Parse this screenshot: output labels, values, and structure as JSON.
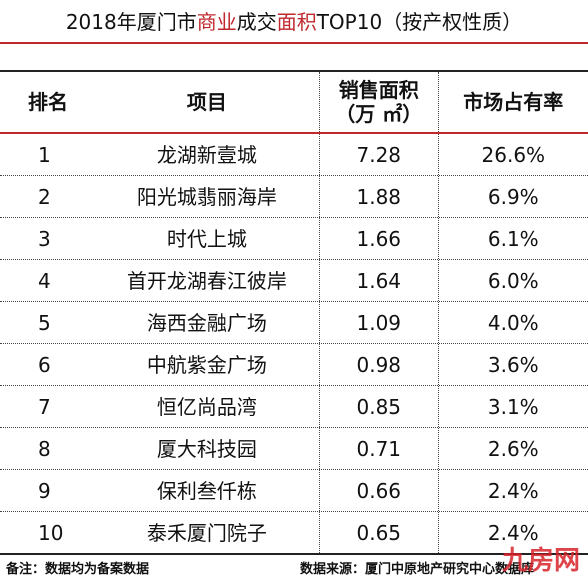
{
  "title": {
    "parts": [
      "2018年厦门市",
      "商业",
      "成交",
      "面积",
      "TOP10（按产权性质）"
    ]
  },
  "table": {
    "header": [
      "排名",
      "项目",
      [
        "销售面积",
        "（万 ㎡）"
      ],
      "市场占有率"
    ],
    "rows": [
      [
        "1",
        "龙湖新壹城",
        "7.28",
        "26.6%"
      ],
      [
        "2",
        "阳光城翡丽海岸",
        "1.88",
        "6.9%"
      ],
      [
        "3",
        "时代上城",
        "1.66",
        "6.1%"
      ],
      [
        "4",
        "首开龙湖春江彼岸",
        "1.64",
        "6.0%"
      ],
      [
        "5",
        "海西金融广场",
        "1.09",
        "4.0%"
      ],
      [
        "6",
        "中航紫金广场",
        "0.98",
        "3.6%"
      ],
      [
        "7",
        "恒亿尚品湾",
        "0.85",
        "3.1%"
      ],
      [
        "8",
        "厦大科技园",
        "0.71",
        "2.6%"
      ],
      [
        "9",
        "保利叁仟栋",
        "0.66",
        "2.4%"
      ],
      [
        "10",
        "泰禾厦门院子",
        "0.65",
        "2.4%"
      ]
    ]
  },
  "footer": {
    "note": "备注：数据均为备案数据",
    "source": "数据来源：厦门中原地产研究中心数据库",
    "logo": "九房网"
  }
}
